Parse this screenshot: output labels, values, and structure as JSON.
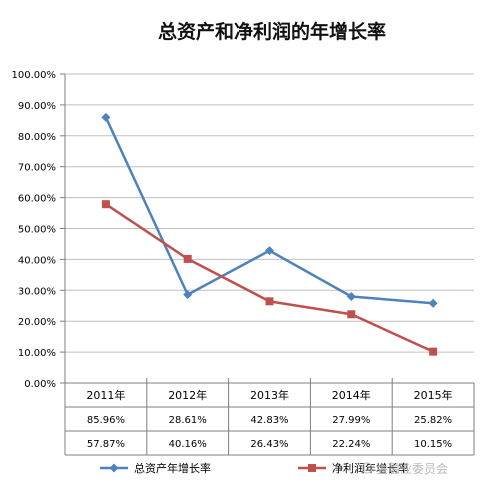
{
  "chart_data": {
    "type": "line",
    "title": "总资产和净利润的年增长率",
    "categories": [
      "2011年",
      "2012年",
      "2013年",
      "2014年",
      "2015年"
    ],
    "ylim": [
      0,
      100
    ],
    "yticks": [
      "0.00%",
      "10.00%",
      "20.00%",
      "30.00%",
      "40.00%",
      "50.00%",
      "60.00%",
      "70.00%",
      "80.00%",
      "90.00%",
      "100.00%"
    ],
    "grid": true,
    "legend_position": "bottom",
    "series": [
      {
        "name": "总资产年增长率",
        "values": [
          85.96,
          28.61,
          42.83,
          27.99,
          25.82
        ],
        "labels": [
          "85.96%",
          "28.61%",
          "42.83%",
          "27.99%",
          "25.82%"
        ],
        "color": "#4F81BD",
        "marker": "diamond"
      },
      {
        "name": "净利润年增长率",
        "values": [
          57.87,
          40.16,
          26.43,
          22.24,
          10.15
        ],
        "labels": [
          "57.87%",
          "40.16%",
          "26.43%",
          "22.24%",
          "10.15%"
        ],
        "color": "#C0504D",
        "marker": "square"
      }
    ]
  },
  "watermark": {
    "text": "金融业委员会"
  }
}
